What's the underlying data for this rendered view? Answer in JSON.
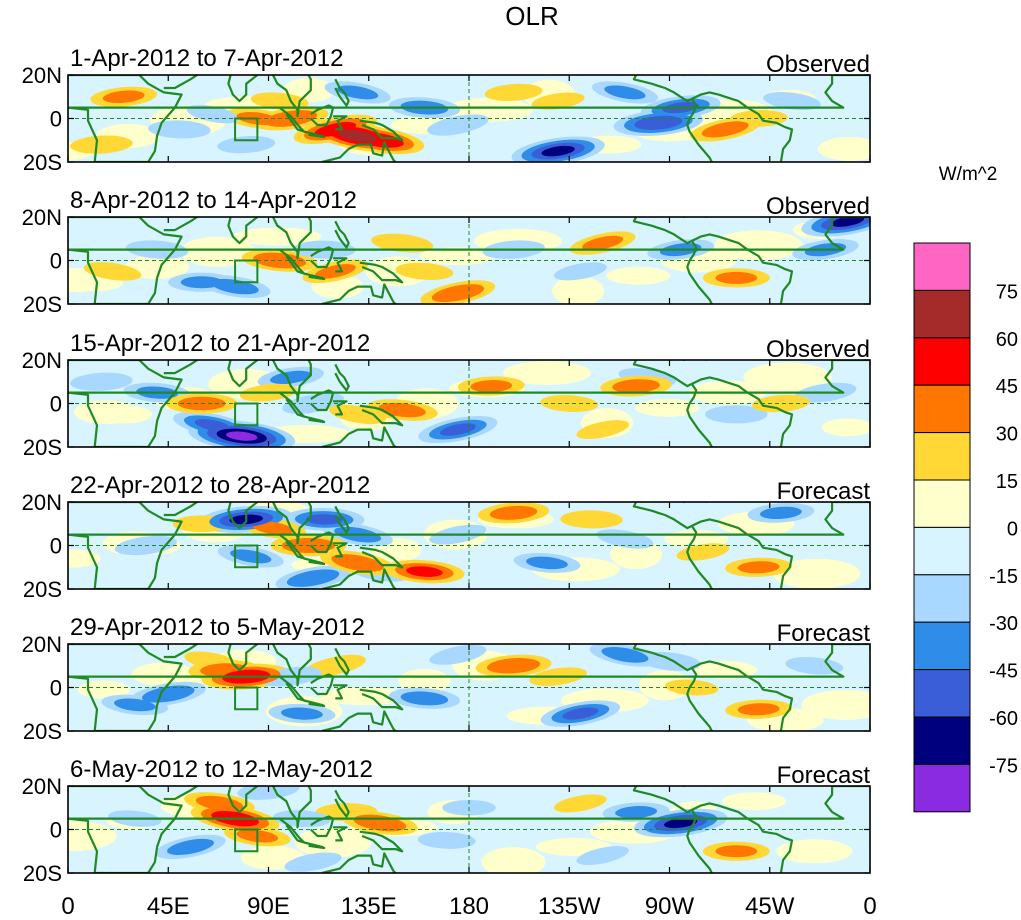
{
  "chart_data": {
    "type": "heatmap",
    "title": "OLR",
    "units_label": "W/m^2",
    "x_ticks": [
      "0",
      "45E",
      "90E",
      "135E",
      "180",
      "135W",
      "90W",
      "45W",
      "0"
    ],
    "y_ticks": [
      "20N",
      "0",
      "20S"
    ],
    "xlim": [
      0,
      360
    ],
    "ylim": [
      -20,
      20
    ],
    "equator_line": "dashed",
    "dateline": "dashed at 180",
    "box_marker": {
      "lon": [
        75,
        85
      ],
      "lat": [
        -10,
        0
      ]
    },
    "colorbar": {
      "placement": "right",
      "labels": [
        "75",
        "60",
        "45",
        "30",
        "15",
        "0",
        "-15",
        "-30",
        "-45",
        "-60",
        "-75"
      ],
      "colors": [
        "#ff66c4",
        "#a52a2a",
        "#ff0000",
        "#ff7700",
        "#ffd835",
        "#ffffcc",
        "#d8f4ff",
        "#a8d8ff",
        "#2f8ce8",
        "#3a5ed8",
        "#00007e",
        "#8a2be2"
      ]
    },
    "panels": [
      {
        "date_label": "1-Apr-2012 to 7-Apr-2012",
        "kind": "Observed",
        "anomalies": [
          {
            "lon": 120,
            "lat": -5,
            "value": 50
          },
          {
            "lon": 130,
            "lat": -8,
            "value": 65
          },
          {
            "lon": 140,
            "lat": -10,
            "value": 55
          },
          {
            "lon": 100,
            "lat": 0,
            "value": 40
          },
          {
            "lon": 85,
            "lat": 0,
            "value": 30
          },
          {
            "lon": 25,
            "lat": 10,
            "value": 30
          },
          {
            "lon": 15,
            "lat": -12,
            "value": 25
          },
          {
            "lon": 95,
            "lat": 8,
            "value": 20
          },
          {
            "lon": 200,
            "lat": 12,
            "value": 20
          },
          {
            "lon": 220,
            "lat": 8,
            "value": 15
          },
          {
            "lon": 295,
            "lat": -5,
            "value": 35
          },
          {
            "lon": 310,
            "lat": 0,
            "value": 20
          },
          {
            "lon": 80,
            "lat": -12,
            "value": -20
          },
          {
            "lon": 50,
            "lat": -5,
            "value": -25
          },
          {
            "lon": 130,
            "lat": 12,
            "value": -30
          },
          {
            "lon": 160,
            "lat": 5,
            "value": -35
          },
          {
            "lon": 175,
            "lat": -3,
            "value": -25
          },
          {
            "lon": 220,
            "lat": -15,
            "value": -60
          },
          {
            "lon": 265,
            "lat": -2,
            "value": -55
          },
          {
            "lon": 275,
            "lat": 5,
            "value": -45
          },
          {
            "lon": 250,
            "lat": 12,
            "value": -30
          },
          {
            "lon": 325,
            "lat": 8,
            "value": -20
          },
          {
            "lon": 65,
            "lat": 2,
            "value": -15
          }
        ]
      },
      {
        "date_label": "8-Apr-2012 to 14-Apr-2012",
        "kind": "Observed",
        "anomalies": [
          {
            "lon": 95,
            "lat": 0,
            "value": 40
          },
          {
            "lon": 120,
            "lat": -5,
            "value": 30
          },
          {
            "lon": 150,
            "lat": 8,
            "value": 25
          },
          {
            "lon": 175,
            "lat": -15,
            "value": 40
          },
          {
            "lon": 160,
            "lat": -5,
            "value": 20
          },
          {
            "lon": 240,
            "lat": 8,
            "value": 30
          },
          {
            "lon": 300,
            "lat": -8,
            "value": 30
          },
          {
            "lon": 20,
            "lat": -5,
            "value": 20
          },
          {
            "lon": 40,
            "lat": 5,
            "value": -25
          },
          {
            "lon": 60,
            "lat": -10,
            "value": -30
          },
          {
            "lon": 75,
            "lat": -12,
            "value": -35
          },
          {
            "lon": 115,
            "lat": 5,
            "value": -25
          },
          {
            "lon": 200,
            "lat": 5,
            "value": -25
          },
          {
            "lon": 275,
            "lat": 5,
            "value": -30
          },
          {
            "lon": 350,
            "lat": 18,
            "value": -60
          },
          {
            "lon": 340,
            "lat": 5,
            "value": -30
          },
          {
            "lon": 230,
            "lat": -5,
            "value": -15
          }
        ]
      },
      {
        "date_label": "15-Apr-2012 to 21-Apr-2012",
        "kind": "Observed",
        "anomalies": [
          {
            "lon": 78,
            "lat": -15,
            "value": -75
          },
          {
            "lon": 65,
            "lat": -10,
            "value": -45
          },
          {
            "lon": 40,
            "lat": 5,
            "value": -30
          },
          {
            "lon": 15,
            "lat": 10,
            "value": -25
          },
          {
            "lon": 100,
            "lat": 12,
            "value": -30
          },
          {
            "lon": 110,
            "lat": 0,
            "value": -25
          },
          {
            "lon": 175,
            "lat": -12,
            "value": -45
          },
          {
            "lon": 260,
            "lat": 12,
            "value": -20
          },
          {
            "lon": 300,
            "lat": -5,
            "value": -25
          },
          {
            "lon": 340,
            "lat": 5,
            "value": -25
          },
          {
            "lon": 60,
            "lat": 0,
            "value": 35
          },
          {
            "lon": 90,
            "lat": 5,
            "value": 20
          },
          {
            "lon": 130,
            "lat": -5,
            "value": 20
          },
          {
            "lon": 150,
            "lat": -3,
            "value": 35
          },
          {
            "lon": 190,
            "lat": 8,
            "value": 30
          },
          {
            "lon": 255,
            "lat": 8,
            "value": 35
          },
          {
            "lon": 225,
            "lat": 0,
            "value": 20
          },
          {
            "lon": 320,
            "lat": 0,
            "value": 20
          },
          {
            "lon": 240,
            "lat": -12,
            "value": 15
          }
        ]
      },
      {
        "date_label": "22-Apr-2012 to 28-Apr-2012",
        "kind": "Forecast",
        "anomalies": [
          {
            "lon": 80,
            "lat": 12,
            "value": -60
          },
          {
            "lon": 82,
            "lat": -5,
            "value": -30
          },
          {
            "lon": 115,
            "lat": 12,
            "value": -45
          },
          {
            "lon": 130,
            "lat": 5,
            "value": -35
          },
          {
            "lon": 110,
            "lat": -15,
            "value": -40
          },
          {
            "lon": 140,
            "lat": -12,
            "value": -25
          },
          {
            "lon": 175,
            "lat": 5,
            "value": -20
          },
          {
            "lon": 215,
            "lat": -8,
            "value": -30
          },
          {
            "lon": 250,
            "lat": 3,
            "value": -20
          },
          {
            "lon": 320,
            "lat": 15,
            "value": -30
          },
          {
            "lon": 35,
            "lat": 0,
            "value": -25
          },
          {
            "lon": 60,
            "lat": 10,
            "value": 20
          },
          {
            "lon": 92,
            "lat": 8,
            "value": 30
          },
          {
            "lon": 108,
            "lat": 0,
            "value": 40
          },
          {
            "lon": 130,
            "lat": -8,
            "value": 40
          },
          {
            "lon": 160,
            "lat": -12,
            "value": 45
          },
          {
            "lon": 200,
            "lat": 15,
            "value": 35
          },
          {
            "lon": 235,
            "lat": 12,
            "value": 25
          },
          {
            "lon": 310,
            "lat": -10,
            "value": 30
          },
          {
            "lon": 285,
            "lat": -3,
            "value": 15
          }
        ]
      },
      {
        "date_label": "29-Apr-2012 to 5-May-2012",
        "kind": "Forecast",
        "anomalies": [
          {
            "lon": 80,
            "lat": 5,
            "value": 55
          },
          {
            "lon": 70,
            "lat": 8,
            "value": 35
          },
          {
            "lon": 65,
            "lat": 12,
            "value": 20
          },
          {
            "lon": 120,
            "lat": 10,
            "value": 25
          },
          {
            "lon": 200,
            "lat": 10,
            "value": 40
          },
          {
            "lon": 220,
            "lat": 5,
            "value": 20
          },
          {
            "lon": 310,
            "lat": -10,
            "value": 30
          },
          {
            "lon": 280,
            "lat": 0,
            "value": 15
          },
          {
            "lon": 45,
            "lat": -3,
            "value": -40
          },
          {
            "lon": 30,
            "lat": -8,
            "value": -30
          },
          {
            "lon": 100,
            "lat": 5,
            "value": -25
          },
          {
            "lon": 105,
            "lat": -12,
            "value": -30
          },
          {
            "lon": 160,
            "lat": -5,
            "value": -35
          },
          {
            "lon": 230,
            "lat": -12,
            "value": -45
          },
          {
            "lon": 250,
            "lat": 15,
            "value": -35
          },
          {
            "lon": 270,
            "lat": 12,
            "value": -25
          },
          {
            "lon": 175,
            "lat": 15,
            "value": -20
          },
          {
            "lon": 335,
            "lat": 10,
            "value": -20
          }
        ]
      },
      {
        "date_label": "6-May-2012 to 12-May-2012",
        "kind": "Forecast",
        "anomalies": [
          {
            "lon": 75,
            "lat": 5,
            "value": 55
          },
          {
            "lon": 68,
            "lat": 12,
            "value": 35
          },
          {
            "lon": 85,
            "lat": -3,
            "value": 30
          },
          {
            "lon": 140,
            "lat": 3,
            "value": 40
          },
          {
            "lon": 125,
            "lat": 8,
            "value": 25
          },
          {
            "lon": 300,
            "lat": -10,
            "value": 30
          },
          {
            "lon": 230,
            "lat": 12,
            "value": 15
          },
          {
            "lon": 90,
            "lat": 18,
            "value": -25
          },
          {
            "lon": 105,
            "lat": 5,
            "value": -20
          },
          {
            "lon": 55,
            "lat": -8,
            "value": -35
          },
          {
            "lon": 170,
            "lat": -5,
            "value": -20
          },
          {
            "lon": 180,
            "lat": 10,
            "value": -15
          },
          {
            "lon": 275,
            "lat": 3,
            "value": -60
          },
          {
            "lon": 255,
            "lat": 8,
            "value": -30
          },
          {
            "lon": 110,
            "lat": -15,
            "value": -20
          },
          {
            "lon": 30,
            "lat": 5,
            "value": -15
          },
          {
            "lon": 240,
            "lat": -12,
            "value": -15
          }
        ]
      }
    ]
  }
}
